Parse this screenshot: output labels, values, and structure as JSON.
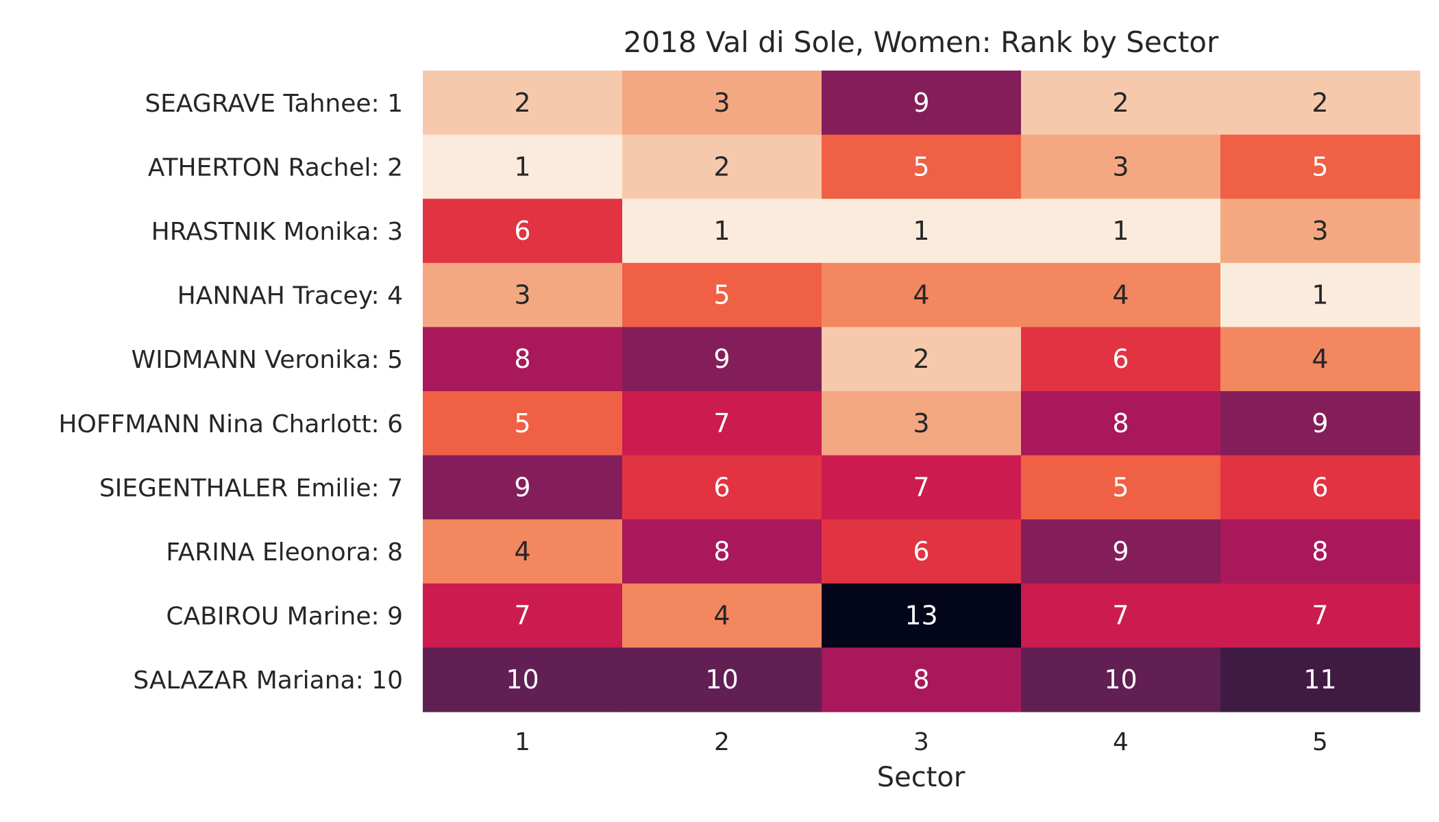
{
  "chart_data": {
    "type": "heatmap",
    "title": "2018 Val di Sole, Women: Rank by Sector",
    "xlabel": "Sector",
    "ylabel": "",
    "x_categories": [
      "1",
      "2",
      "3",
      "4",
      "5"
    ],
    "y_categories": [
      "SEAGRAVE Tahnee: 1",
      "ATHERTON Rachel: 2",
      "HRASTNIK Monika: 3",
      "HANNAH Tracey: 4",
      "WIDMANN Veronika: 5",
      "HOFFMANN Nina Charlott: 6",
      "SIEGENTHALER Emilie: 7",
      "FARINA Eleonora: 8",
      "CABIROU Marine: 9",
      "SALAZAR Mariana: 10"
    ],
    "values": [
      [
        2,
        3,
        9,
        2,
        2
      ],
      [
        1,
        2,
        5,
        3,
        5
      ],
      [
        6,
        1,
        1,
        1,
        3
      ],
      [
        3,
        5,
        4,
        4,
        1
      ],
      [
        8,
        9,
        2,
        6,
        4
      ],
      [
        5,
        7,
        3,
        8,
        9
      ],
      [
        9,
        6,
        7,
        5,
        6
      ],
      [
        4,
        8,
        6,
        9,
        8
      ],
      [
        7,
        4,
        13,
        7,
        7
      ],
      [
        10,
        10,
        8,
        10,
        11
      ]
    ],
    "colorscale": "rocket_r",
    "color_range": [
      1,
      13
    ],
    "colorbar": false,
    "grid": false,
    "annotations": true,
    "rank_colors": {
      "1": "#faebdd",
      "2": "#f6c9ad",
      "3": "#f4a882",
      "4": "#f3875f",
      "5": "#ef6045",
      "6": "#e13342",
      "7": "#cb1b4f",
      "8": "#a8185b",
      "9": "#841e5a",
      "10": "#611f53",
      "11": "#3f1b44",
      "12": "#1f1330",
      "13": "#03051a"
    },
    "text_colors": {
      "light": "#ffffff",
      "dark": "#262626"
    },
    "dark_text_max_rank": 4
  }
}
